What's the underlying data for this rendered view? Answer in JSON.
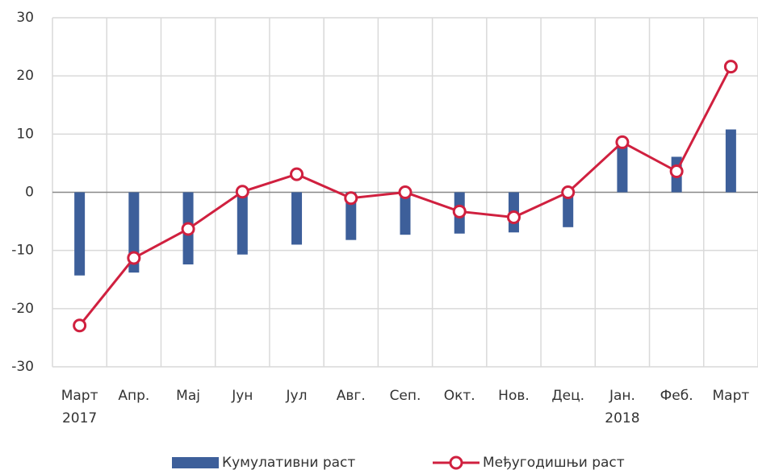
{
  "chart_data": {
    "type": "bar_line",
    "categories": [
      "Март 2017",
      "Апр.",
      "Мај",
      "Јун",
      "Јул",
      "Авг.",
      "Сеп.",
      "Окт.",
      "Нов.",
      "Дец.",
      "Јан. 2018",
      "Феб.",
      "Март"
    ],
    "series": [
      {
        "name": "Кумулативни раст",
        "type": "bar",
        "color": "#3d5f9a",
        "values": [
          -14.3,
          -13.8,
          -12.4,
          -10.7,
          -9,
          -8.2,
          -7.3,
          -7.1,
          -6.9,
          -6,
          8.8,
          6.1,
          10.8
        ]
      },
      {
        "name": "Међугодишњи раст",
        "type": "line",
        "color": "#d0203f",
        "values": [
          -22.9,
          -11.3,
          -6.3,
          0.1,
          3.1,
          -1,
          0,
          -3.3,
          -4.3,
          0,
          8.6,
          3.6,
          21.6
        ]
      }
    ],
    "ylim": [
      -30,
      30
    ],
    "yticks": [
      -30,
      -20,
      -10,
      0,
      10,
      20,
      30
    ],
    "grid": true,
    "legend": "bottom"
  }
}
